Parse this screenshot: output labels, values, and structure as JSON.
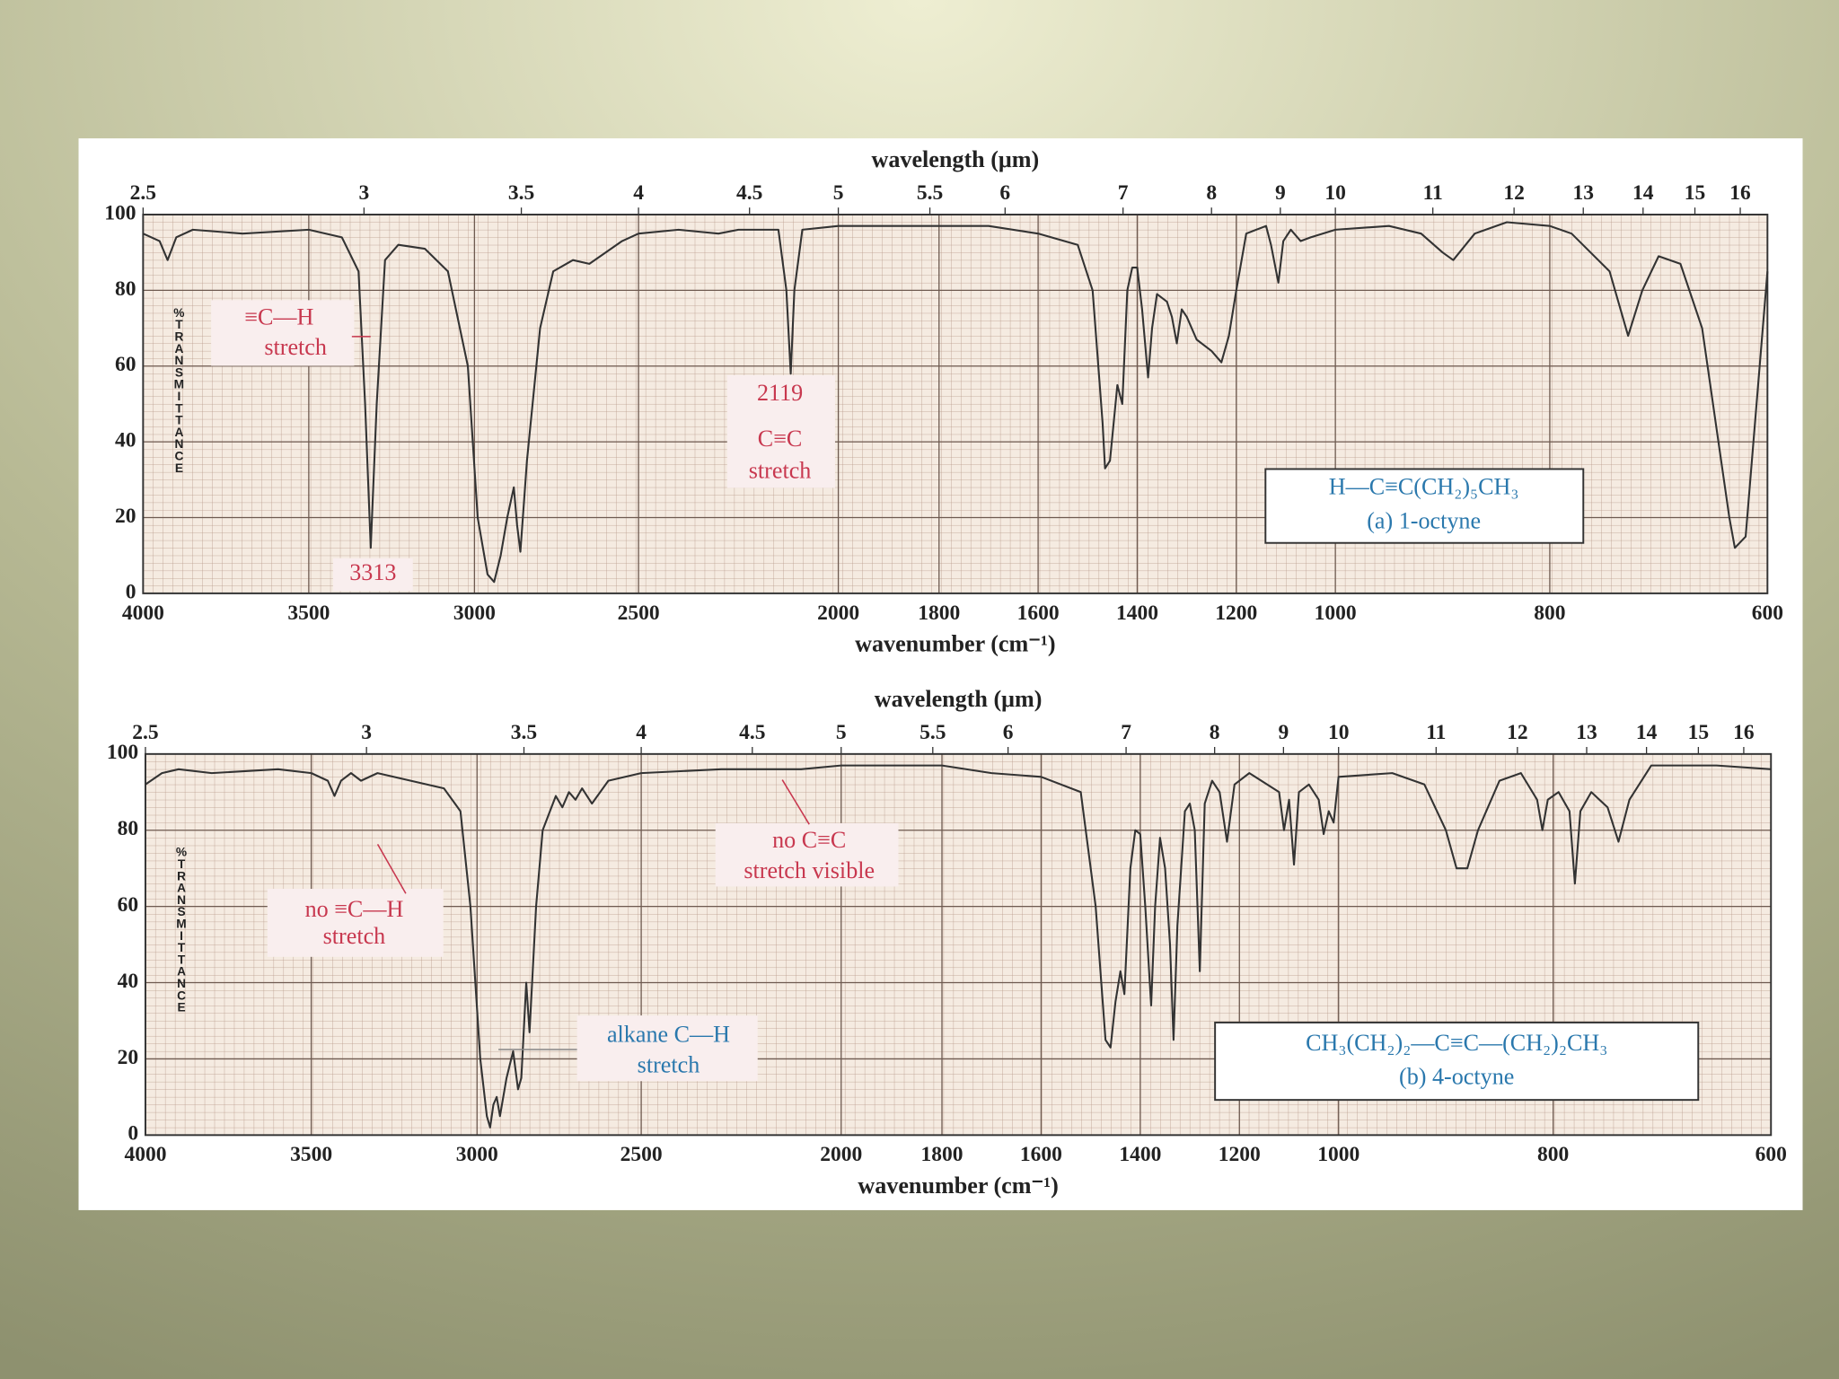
{
  "chart_data": [
    {
      "type": "line",
      "x_label": "wavenumber (cm⁻¹)",
      "x2_label": "wavelength (μm)",
      "y_label": "%TRANSMITTANCE",
      "xlim": [
        4000,
        600
      ],
      "xticks": [
        4000,
        3500,
        3000,
        2500,
        2000,
        1800,
        1600,
        1400,
        1200,
        1000,
        800,
        600
      ],
      "x2ticks": [
        2.5,
        3,
        3.5,
        4,
        4.5,
        5,
        5.5,
        6,
        7,
        8,
        9,
        10,
        11,
        12,
        13,
        14,
        15,
        16
      ],
      "ylim": [
        0,
        100
      ],
      "yticks": [
        0,
        20,
        40,
        60,
        80,
        100
      ],
      "grid": true,
      "color": "#333333",
      "x": [
        4000,
        3950,
        3926,
        3900,
        3850,
        3700,
        3500,
        3400,
        3350,
        3330,
        3313,
        3295,
        3270,
        3230,
        3150,
        3080,
        3020,
        2990,
        2960,
        2940,
        2920,
        2900,
        2880,
        2870,
        2860,
        2840,
        2800,
        2760,
        2700,
        2650,
        2600,
        2550,
        2500,
        2400,
        2300,
        2250,
        2150,
        2130,
        2119,
        2110,
        2090,
        2000,
        1800,
        1700,
        1600,
        1520,
        1490,
        1470,
        1465,
        1455,
        1440,
        1430,
        1420,
        1410,
        1400,
        1390,
        1378,
        1370,
        1360,
        1340,
        1330,
        1320,
        1310,
        1300,
        1280,
        1250,
        1230,
        1215,
        1200,
        1180,
        1140,
        1130,
        1115,
        1105,
        1090,
        1070,
        1050,
        1000,
        950,
        920,
        900,
        890,
        870,
        840,
        800,
        780,
        745,
        728,
        715,
        700,
        680,
        660,
        645,
        635,
        630,
        620,
        600
      ],
      "values": [
        95,
        93,
        88,
        94,
        96,
        95,
        96,
        94,
        85,
        50,
        12,
        50,
        88,
        92,
        91,
        85,
        60,
        20,
        5,
        3,
        10,
        20,
        28,
        18,
        11,
        35,
        70,
        85,
        88,
        87,
        90,
        93,
        95,
        96,
        95,
        96,
        96,
        80,
        58,
        80,
        96,
        97,
        97,
        97,
        95,
        92,
        80,
        45,
        33,
        35,
        55,
        50,
        80,
        86,
        86,
        75,
        57,
        70,
        79,
        77,
        73,
        66,
        75,
        73,
        67,
        64,
        61,
        68,
        80,
        95,
        97,
        92,
        82,
        93,
        96,
        93,
        94,
        96,
        97,
        95,
        90,
        88,
        95,
        98,
        97,
        95,
        85,
        68,
        80,
        89,
        87,
        70,
        40,
        20,
        12,
        15,
        85
      ],
      "annotations": [
        {
          "text": "≡C—H",
          "color": "#c8384f"
        },
        {
          "text": "stretch",
          "color": "#c8384f"
        },
        {
          "text": "3313",
          "color": "#c8384f"
        },
        {
          "text": "2119",
          "color": "#c8384f"
        },
        {
          "text": "C≡C",
          "color": "#c8384f"
        },
        {
          "text": "stretch",
          "color": "#c8384f"
        },
        {
          "text": "H—C≡C(CH₂)₅CH₃",
          "color": "#2a78ad"
        },
        {
          "text": "(a) 1-octyne",
          "color": "#2a78ad"
        }
      ]
    },
    {
      "type": "line",
      "x_label": "wavenumber (cm⁻¹)",
      "x2_label": "wavelength (μm)",
      "y_label": "%TRANSMITTANCE",
      "xlim": [
        4000,
        600
      ],
      "xticks": [
        4000,
        3500,
        3000,
        2500,
        2000,
        1800,
        1600,
        1400,
        1200,
        1000,
        800,
        600
      ],
      "x2ticks": [
        2.5,
        3,
        3.5,
        4,
        4.5,
        5,
        5.5,
        6,
        7,
        8,
        9,
        10,
        11,
        12,
        13,
        14,
        15,
        16
      ],
      "ylim": [
        0,
        100
      ],
      "yticks": [
        0,
        20,
        40,
        60,
        80,
        100
      ],
      "grid": true,
      "color": "#333333",
      "x": [
        4000,
        3950,
        3900,
        3800,
        3600,
        3500,
        3450,
        3430,
        3410,
        3380,
        3350,
        3300,
        3200,
        3100,
        3050,
        3020,
        2990,
        2970,
        2960,
        2950,
        2940,
        2930,
        2910,
        2890,
        2875,
        2865,
        2850,
        2840,
        2820,
        2800,
        2760,
        2740,
        2720,
        2700,
        2680,
        2650,
        2600,
        2500,
        2300,
        2100,
        2000,
        1800,
        1700,
        1600,
        1520,
        1490,
        1470,
        1460,
        1450,
        1440,
        1432,
        1420,
        1410,
        1400,
        1390,
        1378,
        1370,
        1360,
        1350,
        1340,
        1333,
        1325,
        1310,
        1300,
        1290,
        1280,
        1270,
        1255,
        1240,
        1225,
        1210,
        1180,
        1120,
        1110,
        1100,
        1090,
        1080,
        1060,
        1040,
        1030,
        1020,
        1010,
        1000,
        950,
        920,
        900,
        890,
        880,
        870,
        850,
        830,
        815,
        810,
        805,
        795,
        785,
        780,
        775,
        765,
        750,
        740,
        730,
        710,
        650,
        600
      ],
      "values": [
        92,
        95,
        96,
        95,
        96,
        95,
        93,
        89,
        93,
        95,
        93,
        95,
        93,
        91,
        85,
        60,
        20,
        5,
        2,
        8,
        10,
        5,
        15,
        22,
        12,
        15,
        40,
        27,
        60,
        80,
        89,
        86,
        90,
        88,
        91,
        87,
        93,
        95,
        96,
        96,
        97,
        97,
        95,
        94,
        90,
        60,
        25,
        23,
        35,
        43,
        37,
        70,
        80,
        79,
        60,
        34,
        60,
        78,
        70,
        50,
        25,
        55,
        85,
        87,
        80,
        43,
        87,
        93,
        90,
        77,
        92,
        95,
        90,
        80,
        88,
        71,
        90,
        92,
        88,
        79,
        85,
        82,
        94,
        95,
        92,
        80,
        70,
        70,
        80,
        93,
        95,
        88,
        80,
        88,
        90,
        85,
        66,
        85,
        90,
        86,
        77,
        88,
        97,
        97,
        96
      ],
      "annotations": [
        {
          "text": "no ≡C—H",
          "color": "#c8384f"
        },
        {
          "text": "stretch",
          "color": "#c8384f"
        },
        {
          "text": "no C≡C",
          "color": "#c8384f"
        },
        {
          "text": "stretch visible",
          "color": "#c8384f"
        },
        {
          "text": "alkane C—H",
          "color": "#2a78ad"
        },
        {
          "text": "stretch",
          "color": "#2a78ad"
        },
        {
          "text": "CH₃(CH₂)₂—C≡C—(CH₂)₂CH₃",
          "color": "#2a78ad"
        },
        {
          "text": "(b) 4-octyne",
          "color": "#2a78ad"
        }
      ]
    }
  ]
}
